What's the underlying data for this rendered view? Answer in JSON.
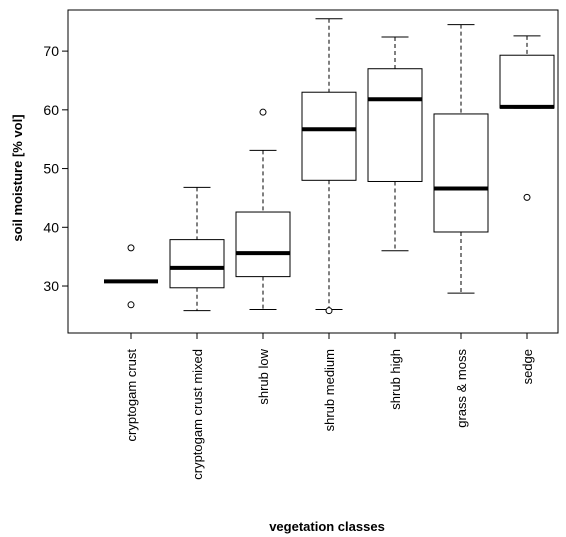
{
  "chart_data": {
    "type": "boxplot",
    "xlabel": "vegetation classes",
    "ylabel": "soil moisture [% vol]",
    "ylim": [
      22,
      77
    ],
    "yticks": [
      30,
      40,
      50,
      60,
      70
    ],
    "grid": false,
    "categories": [
      "cryptogam crust",
      "cryptogam crust mixed",
      "shrub low",
      "shrub medium",
      "shrub high",
      "grass & moss",
      "sedge"
    ],
    "boxes": [
      {
        "whisker_low": 30.8,
        "q1": 30.8,
        "median": 30.8,
        "q3": 30.8,
        "whisker_high": 30.8,
        "outliers": [
          36.5,
          26.8
        ]
      },
      {
        "whisker_low": 25.8,
        "q1": 29.7,
        "median": 33.1,
        "q3": 37.9,
        "whisker_high": 46.8,
        "outliers": []
      },
      {
        "whisker_low": 26.0,
        "q1": 31.6,
        "median": 35.6,
        "q3": 42.6,
        "whisker_high": 53.1,
        "outliers": [
          59.6
        ]
      },
      {
        "whisker_low": 26.0,
        "q1": 48.0,
        "median": 56.7,
        "q3": 63.0,
        "whisker_high": 75.5,
        "outliers": [
          25.8
        ]
      },
      {
        "whisker_low": 36.0,
        "q1": 47.8,
        "median": 61.8,
        "q3": 67.0,
        "whisker_high": 72.4,
        "outliers": []
      },
      {
        "whisker_low": 28.8,
        "q1": 39.2,
        "median": 46.6,
        "q3": 59.3,
        "whisker_high": 74.5,
        "outliers": []
      },
      {
        "whisker_low": 60.3,
        "q1": 60.3,
        "median": 60.5,
        "q3": 69.3,
        "whisker_high": 72.6,
        "outliers": [
          45.1
        ]
      }
    ]
  }
}
